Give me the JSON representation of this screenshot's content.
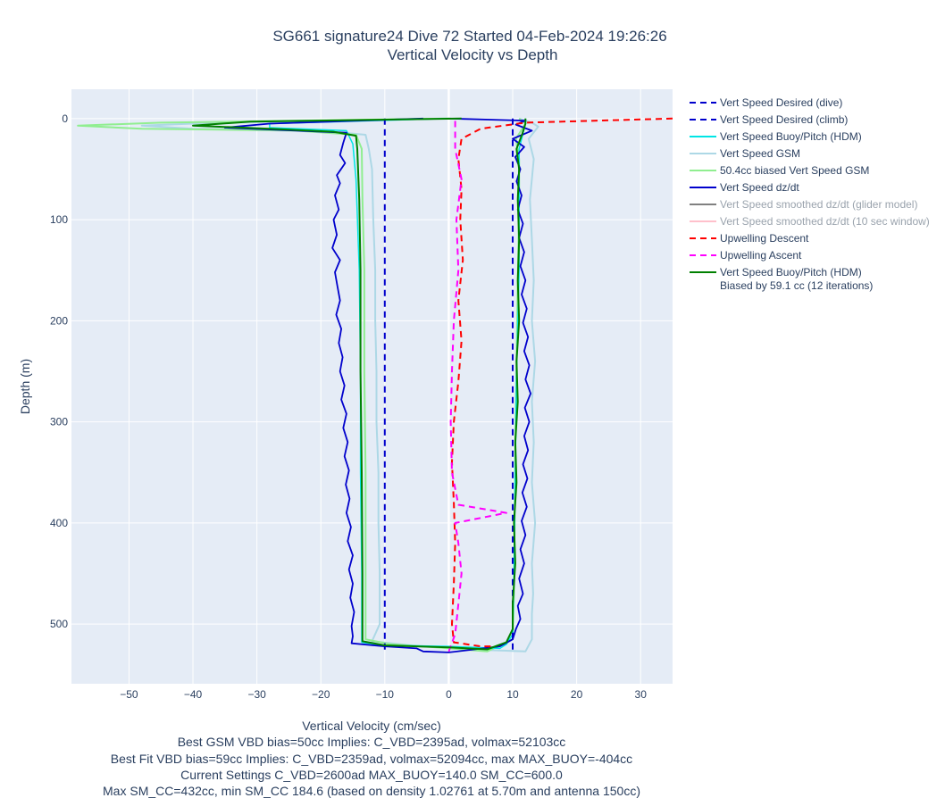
{
  "chart_data": {
    "type": "line",
    "title_lines": [
      "SG661 signature24 Dive 72 Started 04-Feb-2024 19:26:26",
      "Vertical Velocity vs Depth"
    ],
    "xlabel": "Vertical Velocity (cm/sec)",
    "ylabel": "Depth (m)",
    "xlim": [
      -59,
      35
    ],
    "ylim": [
      559,
      -29
    ],
    "y_reversed": true,
    "x_ticks": [
      -50,
      -40,
      -30,
      -20,
      -10,
      0,
      10,
      20,
      30
    ],
    "x_tick_labels": [
      "−50",
      "−40",
      "−30",
      "−20",
      "−10",
      "0",
      "10",
      "20",
      "30"
    ],
    "y_ticks": [
      0,
      100,
      200,
      300,
      400,
      500
    ],
    "y_tick_labels": [
      "0",
      "100",
      "200",
      "300",
      "400",
      "500"
    ],
    "grid": true,
    "legend_position": "right",
    "footer_lines": [
      "Best GSM VBD bias=50cc Implies: C_VBD=2395ad, volmax=52103cc",
      "Best Fit VBD bias=59cc Implies: C_VBD=2359ad, volmax=52094cc, max MAX_BUOY=-404cc",
      "Current Settings C_VBD=2600ad MAX_BUOY=140.0 SM_CC=600.0",
      "Max SM_CC=432cc, min SM_CC 184.6 (based on density 1.02761 at 5.70m and antenna 150cc)"
    ],
    "series": [
      {
        "name": "Vert Speed Desired (dive)",
        "color": "#0000cc",
        "dash": "dash",
        "width": 2,
        "dim": false,
        "points": [
          [
            -10,
            0
          ],
          [
            -10,
            527
          ]
        ]
      },
      {
        "name": "Vert Speed Desired (climb)",
        "color": "#0000cc",
        "dash": "dash",
        "width": 2,
        "dim": false,
        "points": [
          [
            10,
            0
          ],
          [
            10,
            527
          ]
        ]
      },
      {
        "name": "Vert Speed Buoy/Pitch (HDM)",
        "color": "#00e5e5",
        "dash": "solid",
        "width": 1.5,
        "dim": false,
        "points": [
          [
            0,
            0
          ],
          [
            -28,
            5
          ],
          [
            -28,
            9
          ],
          [
            -16,
            12
          ],
          [
            -15,
            25
          ],
          [
            -14.5,
            60
          ],
          [
            -14,
            150
          ],
          [
            -13.8,
            250
          ],
          [
            -13.8,
            350
          ],
          [
            -13.6,
            450
          ],
          [
            -13.6,
            518
          ],
          [
            -10,
            521
          ],
          [
            0,
            522
          ],
          [
            8,
            524
          ],
          [
            9,
            520
          ],
          [
            10,
            510
          ],
          [
            10.2,
            450
          ],
          [
            10.4,
            350
          ],
          [
            10.6,
            250
          ],
          [
            11,
            150
          ],
          [
            11,
            60
          ],
          [
            11,
            30
          ],
          [
            12,
            5
          ],
          [
            12,
            0
          ]
        ]
      },
      {
        "name": "Vert Speed GSM",
        "color": "#add8e6",
        "dash": "solid",
        "width": 2,
        "dim": false,
        "points": [
          [
            0,
            0
          ],
          [
            -36,
            4
          ],
          [
            -48,
            7
          ],
          [
            -40,
            10
          ],
          [
            -20,
            12
          ],
          [
            -13,
            16
          ],
          [
            -12.5,
            30
          ],
          [
            -12,
            50
          ],
          [
            -11.8,
            100
          ],
          [
            -11.5,
            150
          ],
          [
            -11.5,
            200
          ],
          [
            -11.3,
            250
          ],
          [
            -11.3,
            300
          ],
          [
            -11,
            350
          ],
          [
            -11,
            400
          ],
          [
            -10.8,
            450
          ],
          [
            -10.8,
            500
          ],
          [
            -12,
            517
          ],
          [
            -6,
            521
          ],
          [
            3,
            525
          ],
          [
            12,
            527
          ],
          [
            13,
            515
          ],
          [
            13,
            490
          ],
          [
            13.2,
            470
          ],
          [
            13,
            440
          ],
          [
            13.5,
            400
          ],
          [
            13,
            360
          ],
          [
            13.3,
            320
          ],
          [
            13,
            280
          ],
          [
            13.5,
            240
          ],
          [
            13,
            200
          ],
          [
            13.3,
            160
          ],
          [
            13,
            120
          ],
          [
            12.7,
            80
          ],
          [
            13.3,
            40
          ],
          [
            12.5,
            20
          ],
          [
            14,
            8
          ],
          [
            13,
            4
          ],
          [
            11,
            0
          ]
        ]
      },
      {
        "name": "50.4cc biased Vert Speed GSM",
        "color": "#90ee90",
        "dash": "solid",
        "width": 2,
        "dim": false,
        "points": [
          [
            0,
            0
          ],
          [
            -45,
            4
          ],
          [
            -58,
            7
          ],
          [
            -48,
            10
          ],
          [
            -24,
            12
          ],
          [
            -14.5,
            16
          ],
          [
            -13.6,
            30
          ],
          [
            -13.5,
            80
          ],
          [
            -13.2,
            150
          ],
          [
            -13.2,
            250
          ],
          [
            -13,
            350
          ],
          [
            -13,
            450
          ],
          [
            -13,
            515
          ],
          [
            -9,
            520
          ],
          [
            -2,
            523
          ],
          [
            6,
            527
          ],
          [
            10,
            515
          ],
          [
            10.2,
            470
          ],
          [
            10.3,
            400
          ],
          [
            10.4,
            320
          ],
          [
            10.6,
            240
          ],
          [
            10.8,
            160
          ],
          [
            11,
            80
          ],
          [
            11,
            40
          ],
          [
            10.5,
            20
          ],
          [
            12,
            5
          ],
          [
            11,
            0
          ]
        ]
      },
      {
        "name": "Vert Speed dz/dt",
        "color": "#0000cc",
        "dash": "solid",
        "width": 1.8,
        "dim": false,
        "points": [
          [
            -4,
            0
          ],
          [
            -28,
            5
          ],
          [
            -35,
            9
          ],
          [
            -16,
            14
          ],
          [
            -16.5,
            24
          ],
          [
            -17,
            36
          ],
          [
            -16.2,
            44
          ],
          [
            -17.5,
            56
          ],
          [
            -17,
            64
          ],
          [
            -17.8,
            76
          ],
          [
            -17.2,
            90
          ],
          [
            -18,
            100
          ],
          [
            -17.5,
            115
          ],
          [
            -18.2,
            128
          ],
          [
            -17,
            140
          ],
          [
            -17.8,
            152
          ],
          [
            -17.4,
            166
          ],
          [
            -17,
            180
          ],
          [
            -17.6,
            194
          ],
          [
            -16.8,
            208
          ],
          [
            -17.2,
            222
          ],
          [
            -16.6,
            236
          ],
          [
            -17,
            250
          ],
          [
            -16.3,
            264
          ],
          [
            -16.8,
            278
          ],
          [
            -16,
            292
          ],
          [
            -16.5,
            306
          ],
          [
            -15.8,
            320
          ],
          [
            -16.3,
            334
          ],
          [
            -15.6,
            348
          ],
          [
            -16.1,
            362
          ],
          [
            -15.5,
            376
          ],
          [
            -16,
            390
          ],
          [
            -15.3,
            404
          ],
          [
            -15.8,
            418
          ],
          [
            -15,
            432
          ],
          [
            -15.6,
            446
          ],
          [
            -15,
            460
          ],
          [
            -15.4,
            474
          ],
          [
            -14.8,
            488
          ],
          [
            -15.2,
            502
          ],
          [
            -15,
            512
          ],
          [
            -15.2,
            519
          ],
          [
            -10,
            522
          ],
          [
            -5,
            524
          ],
          [
            -4,
            527
          ],
          [
            0,
            528
          ],
          [
            8,
            522
          ],
          [
            10,
            515
          ],
          [
            10.5,
            505
          ],
          [
            11.2,
            495
          ],
          [
            10.8,
            482
          ],
          [
            11.6,
            470
          ],
          [
            11,
            455
          ],
          [
            11.8,
            440
          ],
          [
            11.2,
            426
          ],
          [
            12,
            412
          ],
          [
            11.4,
            398
          ],
          [
            12.2,
            384
          ],
          [
            11.5,
            370
          ],
          [
            12.3,
            356
          ],
          [
            11.6,
            342
          ],
          [
            12.4,
            328
          ],
          [
            11.8,
            314
          ],
          [
            12.6,
            300
          ],
          [
            11.9,
            286
          ],
          [
            12.8,
            272
          ],
          [
            12,
            258
          ],
          [
            12.6,
            244
          ],
          [
            11.8,
            230
          ],
          [
            12.4,
            216
          ],
          [
            11.6,
            202
          ],
          [
            12.2,
            188
          ],
          [
            11.4,
            174
          ],
          [
            12,
            160
          ],
          [
            11.2,
            146
          ],
          [
            11.8,
            132
          ],
          [
            11,
            118
          ],
          [
            11.6,
            104
          ],
          [
            10.8,
            90
          ],
          [
            11.4,
            76
          ],
          [
            10.6,
            62
          ],
          [
            11.2,
            50
          ],
          [
            10.4,
            38
          ],
          [
            11.8,
            28
          ],
          [
            10,
            20
          ],
          [
            13,
            12
          ],
          [
            10.5,
            6
          ],
          [
            12,
            2
          ],
          [
            0,
            0
          ]
        ]
      },
      {
        "name": "Vert Speed smoothed dz/dt (glider model)",
        "color": "#808080",
        "dash": "solid",
        "width": 2,
        "dim": true,
        "points": []
      },
      {
        "name": "Vert Speed smoothed dz/dt (10 sec window)",
        "color": "#ffc0cb",
        "dash": "solid",
        "width": 2,
        "dim": true,
        "points": []
      },
      {
        "name": "Upwelling Descent",
        "color": "#ff0000",
        "dash": "dash",
        "width": 2,
        "dim": false,
        "points": [
          [
            35,
            0
          ],
          [
            12,
            4
          ],
          [
            5,
            10
          ],
          [
            2,
            20
          ],
          [
            1.5,
            40
          ],
          [
            2,
            70
          ],
          [
            1.8,
            100
          ],
          [
            2.2,
            140
          ],
          [
            1.5,
            180
          ],
          [
            2,
            220
          ],
          [
            1.5,
            260
          ],
          [
            0.8,
            300
          ],
          [
            0.5,
            340
          ],
          [
            0.8,
            380
          ],
          [
            1,
            420
          ],
          [
            0.8,
            460
          ],
          [
            0.5,
            500
          ],
          [
            0.8,
            518
          ],
          [
            5,
            522
          ],
          [
            7,
            522
          ]
        ]
      },
      {
        "name": "Upwelling Ascent",
        "color": "#ff00ff",
        "dash": "dash",
        "width": 2,
        "dim": false,
        "points": [
          [
            0,
            527
          ],
          [
            1,
            510
          ],
          [
            1.5,
            480
          ],
          [
            2,
            450
          ],
          [
            1.5,
            420
          ],
          [
            1,
            400
          ],
          [
            9,
            390
          ],
          [
            1.5,
            382
          ],
          [
            0.5,
            350
          ],
          [
            0.3,
            300
          ],
          [
            0.5,
            250
          ],
          [
            0.8,
            200
          ],
          [
            1.5,
            150
          ],
          [
            1.2,
            100
          ],
          [
            2,
            60
          ],
          [
            1,
            30
          ],
          [
            1,
            10
          ],
          [
            1,
            0
          ]
        ]
      },
      {
        "name": "Vert Speed Buoy/Pitch (HDM) Biased by 59.1 cc (12 iterations)",
        "label_lines": [
          "Vert Speed Buoy/Pitch (HDM)",
          "Biased by 59.1 cc (12 iterations)"
        ],
        "color": "#008000",
        "dash": "solid",
        "width": 2,
        "dim": false,
        "points": [
          [
            2,
            0
          ],
          [
            -31,
            3
          ],
          [
            -40,
            7
          ],
          [
            -28,
            10
          ],
          [
            -18,
            13
          ],
          [
            -14.5,
            17
          ],
          [
            -14.3,
            30
          ],
          [
            -14,
            80
          ],
          [
            -13.8,
            150
          ],
          [
            -13.8,
            250
          ],
          [
            -13.6,
            350
          ],
          [
            -13.5,
            450
          ],
          [
            -13.5,
            517
          ],
          [
            -10,
            521
          ],
          [
            0,
            523
          ],
          [
            6,
            525
          ],
          [
            9,
            518
          ],
          [
            10,
            505
          ],
          [
            10,
            480
          ],
          [
            10.4,
            440
          ],
          [
            10.2,
            400
          ],
          [
            10.6,
            360
          ],
          [
            10.4,
            320
          ],
          [
            10.8,
            280
          ],
          [
            10.6,
            240
          ],
          [
            11,
            200
          ],
          [
            10.8,
            160
          ],
          [
            11,
            120
          ],
          [
            10.8,
            80
          ],
          [
            11,
            50
          ],
          [
            10.6,
            30
          ],
          [
            11.5,
            15
          ],
          [
            12,
            5
          ],
          [
            12,
            0
          ]
        ]
      }
    ]
  }
}
